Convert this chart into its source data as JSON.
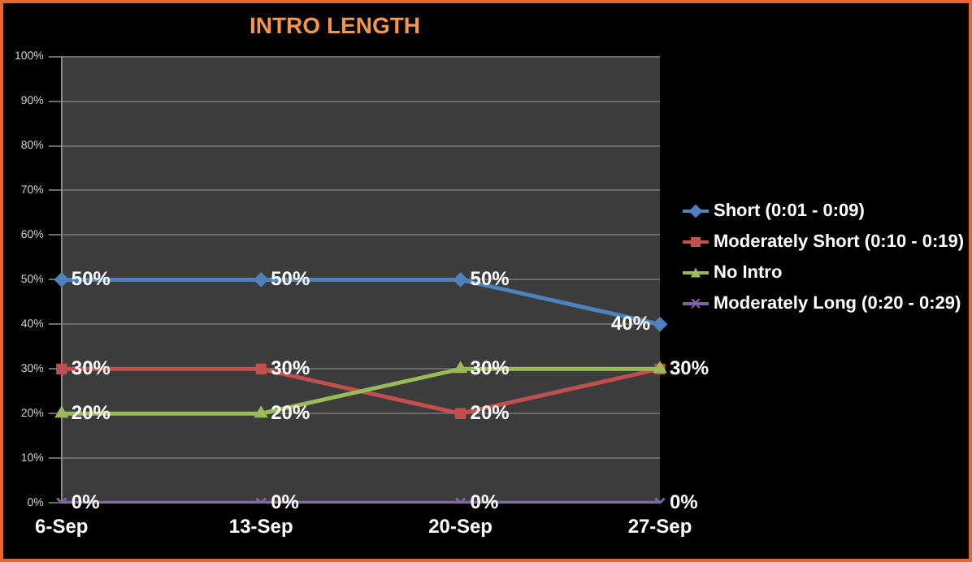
{
  "chart_data": {
    "type": "line",
    "title": "INTRO LENGTH",
    "categories": [
      "6-Sep",
      "13-Sep",
      "20-Sep",
      "27-Sep"
    ],
    "series": [
      {
        "name": "Short (0:01 - 0:09)",
        "color": "#4f81bd",
        "marker": "diamond",
        "values": [
          50,
          50,
          50,
          40
        ],
        "value_labels": [
          "50%",
          "50%",
          "50%",
          "40%"
        ]
      },
      {
        "name": "Moderately Short (0:10 - 0:19)",
        "color": "#c0504d",
        "marker": "square",
        "values": [
          30,
          30,
          20,
          30
        ],
        "value_labels": [
          "30%",
          "30%",
          "20%",
          "30%"
        ]
      },
      {
        "name": "No Intro",
        "color": "#9bbb59",
        "marker": "triangle",
        "values": [
          20,
          20,
          30,
          30
        ],
        "value_labels": [
          "20%",
          "20%",
          "30%",
          null
        ]
      },
      {
        "name": "Moderately Long (0:20 - 0:29)",
        "color": "#8064a2",
        "marker": "cross",
        "values": [
          0,
          0,
          0,
          0
        ],
        "value_labels": [
          "0%",
          "0%",
          "0%",
          "0%"
        ]
      }
    ],
    "ylim": [
      0,
      100
    ],
    "yticks": [
      {
        "value": 0,
        "label": "0%"
      },
      {
        "value": 10,
        "label": "10%"
      },
      {
        "value": 20,
        "label": "20%"
      },
      {
        "value": 30,
        "label": "30%"
      },
      {
        "value": 40,
        "label": "40%"
      },
      {
        "value": 50,
        "label": "50%"
      },
      {
        "value": 60,
        "label": "60%"
      },
      {
        "value": 70,
        "label": "70%"
      },
      {
        "value": 80,
        "label": "80%"
      },
      {
        "value": 90,
        "label": "90%"
      },
      {
        "value": 100,
        "label": "100%"
      }
    ],
    "grid": "y",
    "legend": "right"
  }
}
